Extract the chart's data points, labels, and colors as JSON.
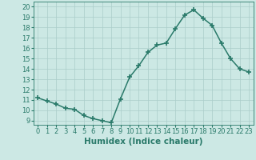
{
  "x": [
    0,
    1,
    2,
    3,
    4,
    5,
    6,
    7,
    8,
    9,
    10,
    11,
    12,
    13,
    14,
    15,
    16,
    17,
    18,
    19,
    20,
    21,
    22,
    23
  ],
  "y": [
    11.2,
    10.9,
    10.6,
    10.2,
    10.1,
    9.5,
    9.2,
    9.0,
    8.8,
    11.1,
    13.2,
    14.3,
    15.6,
    16.3,
    16.5,
    17.9,
    19.2,
    19.7,
    18.9,
    18.2,
    16.5,
    15.0,
    14.0,
    13.7
  ],
  "line_color": "#2a7a6a",
  "marker": "+",
  "marker_size": 4,
  "bg_color": "#cce8e4",
  "grid_color": "#aaccca",
  "xlabel": "Humidex (Indice chaleur)",
  "ylabel_ticks": [
    9,
    10,
    11,
    12,
    13,
    14,
    15,
    16,
    17,
    18,
    19,
    20
  ],
  "ylim": [
    8.6,
    20.5
  ],
  "xlim": [
    -0.5,
    23.5
  ],
  "xticks": [
    0,
    1,
    2,
    3,
    4,
    5,
    6,
    7,
    8,
    9,
    10,
    11,
    12,
    13,
    14,
    15,
    16,
    17,
    18,
    19,
    20,
    21,
    22,
    23
  ],
  "tick_color": "#2a7a6a",
  "label_color": "#2a7a6a",
  "font_size": 6.0,
  "xlabel_fontsize": 7.5,
  "linewidth": 1.1,
  "marker_linewidth": 1.2
}
